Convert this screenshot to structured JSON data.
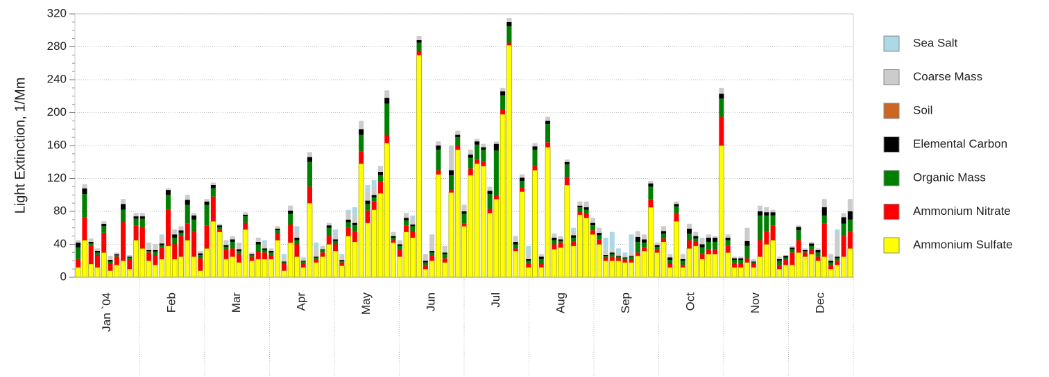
{
  "chart_data": {
    "type": "stacked_bar",
    "y_label": "Light Extinction, 1/Mm",
    "months": [
      "Jan `04",
      "Feb",
      "Mar",
      "Apr",
      "May",
      "Jun",
      "Jul",
      "Aug",
      "Sep",
      "Oct",
      "Nov",
      "Dec"
    ],
    "ylim": [
      0,
      320
    ],
    "yticks": [
      0,
      40,
      80,
      120,
      160,
      200,
      240,
      280,
      320
    ],
    "grid": true,
    "legend": "right",
    "series": [
      {
        "name": "Ammonium Sulfate",
        "color": "#ffff00",
        "values": [
          12,
          45,
          16,
          12,
          30,
          8,
          15,
          20,
          10,
          45,
          35,
          20,
          15,
          22,
          38,
          22,
          25,
          45,
          25,
          8,
          35,
          68,
          55,
          22,
          25,
          18,
          58,
          20,
          22,
          22,
          22,
          45,
          8,
          42,
          25,
          12,
          90,
          18,
          25,
          40,
          32,
          14,
          50,
          43,
          138,
          66,
          82,
          102,
          163,
          42,
          25,
          55,
          48,
          270,
          10,
          20,
          125,
          18,
          103,
          155,
          62,
          124,
          138,
          135,
          78,
          95,
          198,
          282,
          32,
          104,
          12,
          130,
          12,
          158,
          34,
          36,
          112,
          38,
          76,
          72,
          52,
          40,
          20,
          20,
          20,
          18,
          18,
          26,
          32,
          85,
          30,
          43,
          12,
          68,
          12,
          35,
          38,
          22,
          28,
          28,
          160,
          30,
          12,
          12,
          18,
          12,
          25,
          40,
          45,
          10,
          15,
          15,
          30,
          25,
          28,
          20,
          25,
          10,
          15,
          25,
          35
        ]
      },
      {
        "name": "Ammonium Nitrate",
        "color": "#ff0000",
        "values": [
          10,
          28,
          22,
          15,
          24,
          8,
          10,
          47,
          12,
          18,
          26,
          10,
          12,
          14,
          44,
          18,
          25,
          20,
          30,
          15,
          28,
          30,
          3,
          12,
          10,
          10,
          8,
          5,
          10,
          8,
          5,
          8,
          8,
          22,
          15,
          5,
          20,
          4,
          5,
          10,
          8,
          4,
          10,
          12,
          15,
          15,
          10,
          14,
          10,
          3,
          8,
          8,
          8,
          5,
          5,
          6,
          5,
          5,
          3,
          5,
          3,
          8,
          5,
          5,
          5,
          4,
          5,
          3,
          3,
          5,
          5,
          5,
          4,
          6,
          6,
          6,
          10,
          5,
          4,
          5,
          5,
          6,
          4,
          5,
          3,
          3,
          4,
          4,
          4,
          10,
          3,
          4,
          4,
          10,
          3,
          10,
          5,
          6,
          5,
          5,
          35,
          8,
          5,
          5,
          5,
          4,
          20,
          15,
          18,
          5,
          6,
          15,
          15,
          5,
          5,
          5,
          40,
          5,
          5,
          25,
          20
        ]
      },
      {
        "name": "Organic Mass",
        "color": "#008000",
        "values": [
          14,
          28,
          3,
          3,
          8,
          3,
          2,
          15,
          2,
          8,
          10,
          2,
          4,
          3,
          18,
          8,
          4,
          23,
          15,
          4,
          25,
          10,
          3,
          3,
          8,
          4,
          8,
          2,
          8,
          3,
          3,
          4,
          2,
          13,
          5,
          2,
          30,
          2,
          3,
          10,
          4,
          2,
          7,
          8,
          20,
          8,
          5,
          8,
          38,
          3,
          5,
          6,
          6,
          10,
          3,
          4,
          25,
          5,
          18,
          10,
          12,
          13,
          18,
          15,
          18,
          55,
          18,
          20,
          5,
          8,
          3,
          20,
          6,
          22,
          5,
          2,
          15,
          5,
          5,
          5,
          6,
          5,
          2,
          3,
          2,
          2,
          3,
          13,
          6,
          15,
          4,
          6,
          5,
          8,
          5,
          8,
          4,
          8,
          10,
          10,
          22,
          7,
          4,
          4,
          15,
          2,
          30,
          20,
          12,
          5,
          3,
          4,
          12,
          2,
          5,
          5,
          10,
          3,
          3,
          15,
          15
        ]
      },
      {
        "name": "Elemental Carbon",
        "color": "#000000",
        "values": [
          6,
          7,
          2,
          2,
          3,
          2,
          1,
          7,
          1,
          3,
          3,
          1,
          2,
          2,
          6,
          4,
          3,
          6,
          5,
          2,
          4,
          4,
          2,
          2,
          3,
          2,
          2,
          1,
          3,
          2,
          2,
          2,
          1,
          4,
          3,
          1,
          6,
          1,
          1,
          3,
          2,
          1,
          3,
          3,
          7,
          4,
          3,
          4,
          7,
          2,
          2,
          3,
          2,
          3,
          2,
          2,
          5,
          2,
          6,
          3,
          3,
          4,
          4,
          3,
          4,
          8,
          5,
          5,
          3,
          4,
          2,
          4,
          3,
          4,
          3,
          2,
          3,
          3,
          2,
          3,
          3,
          3,
          1,
          2,
          1,
          1,
          1,
          6,
          4,
          4,
          2,
          3,
          3,
          3,
          2,
          6,
          3,
          4,
          5,
          5,
          6,
          3,
          2,
          2,
          6,
          1,
          5,
          4,
          4,
          2,
          2,
          2,
          4,
          1,
          3,
          3,
          10,
          2,
          2,
          8,
          10
        ]
      },
      {
        "name": "Soil",
        "color": "#cc6622",
        "values": [
          0,
          0,
          0,
          0,
          0,
          0,
          0,
          0,
          0,
          0,
          0,
          0,
          0,
          0,
          0,
          0,
          0,
          0,
          0,
          0,
          0,
          0,
          0,
          0,
          0,
          0,
          0,
          0,
          0,
          0,
          0,
          0,
          0,
          0,
          0,
          0,
          0,
          0,
          0,
          0,
          0,
          0,
          0,
          0,
          0,
          0,
          0,
          0,
          0,
          0,
          0,
          0,
          0,
          0,
          0,
          0,
          0,
          0,
          0,
          0,
          0,
          0,
          0,
          0,
          0,
          0,
          0,
          0,
          0,
          0,
          0,
          0,
          0,
          0,
          0,
          0,
          0,
          0,
          0,
          0,
          0,
          0,
          0,
          0,
          0,
          0,
          0,
          0,
          0,
          0,
          0,
          0,
          0,
          0,
          0,
          0,
          0,
          0,
          0,
          0,
          0,
          0,
          0,
          0,
          0,
          0,
          0,
          0,
          0,
          0,
          0,
          0,
          0,
          0,
          0,
          0,
          0,
          0,
          0,
          0,
          0
        ]
      },
      {
        "name": "Coarse Mass",
        "color": "#cccccc",
        "values": [
          3,
          5,
          4,
          3,
          3,
          5,
          2,
          6,
          2,
          4,
          4,
          9,
          7,
          9,
          2,
          6,
          5,
          6,
          3,
          3,
          3,
          3,
          2,
          6,
          4,
          8,
          3,
          2,
          5,
          6,
          3,
          3,
          5,
          6,
          8,
          4,
          6,
          10,
          4,
          3,
          8,
          5,
          10,
          10,
          10,
          12,
          10,
          7,
          9,
          5,
          5,
          6,
          8,
          5,
          8,
          20,
          5,
          8,
          30,
          5,
          8,
          6,
          3,
          4,
          5,
          3,
          4,
          5,
          7,
          4,
          6,
          4,
          3,
          5,
          5,
          4,
          3,
          6,
          5,
          7,
          6,
          6,
          6,
          4,
          4,
          3,
          6,
          7,
          6,
          3,
          3,
          6,
          4,
          3,
          6,
          6,
          5,
          8,
          4,
          2,
          7,
          4,
          2,
          2,
          16,
          3,
          7,
          6,
          3,
          3,
          1,
          2,
          2,
          2,
          2,
          2,
          10,
          8,
          28,
          5,
          15
        ]
      },
      {
        "name": "Sea Salt",
        "color": "#add8e6",
        "values": [
          0,
          0,
          0,
          0,
          0,
          0,
          0,
          0,
          0,
          0,
          0,
          0,
          0,
          2,
          0,
          0,
          0,
          0,
          0,
          0,
          0,
          0,
          0,
          0,
          0,
          0,
          0,
          0,
          0,
          4,
          0,
          0,
          4,
          0,
          6,
          0,
          0,
          7,
          0,
          0,
          4,
          2,
          2,
          9,
          0,
          7,
          8,
          0,
          0,
          0,
          0,
          0,
          3,
          0,
          0,
          0,
          0,
          0,
          0,
          0,
          0,
          0,
          0,
          0,
          0,
          0,
          0,
          0,
          0,
          0,
          10,
          0,
          0,
          0,
          0,
          0,
          0,
          3,
          0,
          0,
          0,
          0,
          15,
          21,
          5,
          3,
          20,
          0,
          0,
          0,
          0,
          0,
          0,
          0,
          0,
          0,
          0,
          0,
          0,
          0,
          0,
          0,
          0,
          0,
          0,
          0,
          0,
          0,
          0,
          0,
          0,
          0,
          0,
          0,
          0,
          0,
          0,
          0,
          5,
          0,
          0
        ]
      }
    ]
  }
}
